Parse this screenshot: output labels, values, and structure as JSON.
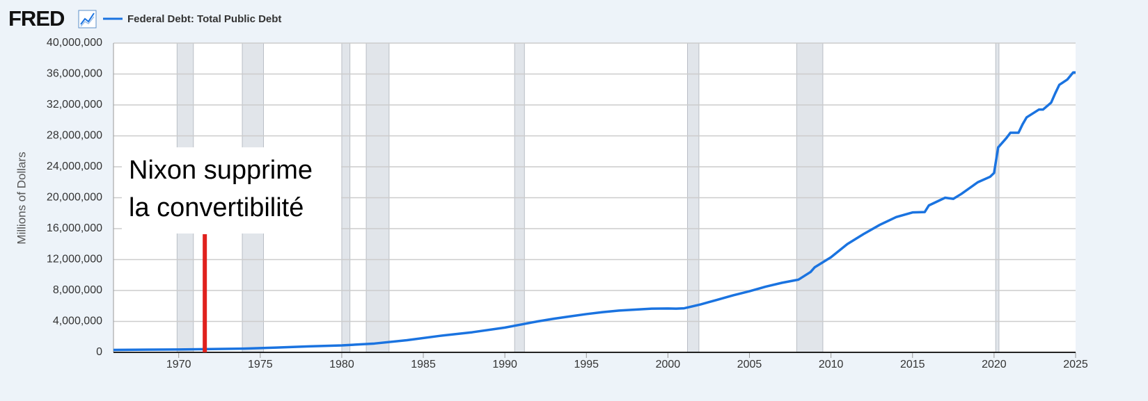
{
  "chart_data": {
    "type": "line",
    "logo": "FRED",
    "y_label": "Millions of Dollars",
    "xlim": [
      1966,
      2025
    ],
    "xticks": [
      1970,
      1975,
      1980,
      1985,
      1990,
      1995,
      2000,
      2005,
      2010,
      2015,
      2020,
      2025
    ],
    "ylim": [
      0,
      40000000
    ],
    "yticks": [
      0,
      {
        "value": 4000000,
        "label": "4,000,000"
      },
      {
        "value": 8000000,
        "label": "8,000,000"
      },
      {
        "value": 12000000,
        "label": "12,000,000"
      },
      {
        "value": 16000000,
        "label": "16,000,000"
      },
      {
        "value": 20000000,
        "label": "20,000,000"
      },
      {
        "value": 24000000,
        "label": "24,000,000"
      },
      {
        "value": 28000000,
        "label": "28,000,000"
      },
      {
        "value": 32000000,
        "label": "32,000,000"
      },
      {
        "value": 36000000,
        "label": "36,000,000"
      },
      {
        "value": 40000000,
        "label": "40,000,000"
      }
    ],
    "grid": true,
    "recessions": [
      [
        1969.9,
        1970.9
      ],
      [
        1973.9,
        1975.2
      ],
      [
        1980.0,
        1980.5
      ],
      [
        1981.5,
        1982.9
      ],
      [
        1990.6,
        1991.2
      ],
      [
        2001.2,
        2001.9
      ],
      [
        2007.9,
        2009.5
      ],
      [
        2020.1,
        2020.3
      ]
    ],
    "recession_color": "#e1e5ea",
    "annotation": {
      "lines": [
        "Nixon supprime",
        "la convertibilité"
      ],
      "x": 1971.6,
      "color": "#e0211d"
    },
    "x": [
      1966,
      1968,
      1970,
      1972,
      1974,
      1976,
      1978,
      1980,
      1982,
      1984,
      1986,
      1988,
      1990,
      1991,
      1992,
      1993,
      1994,
      1995,
      1996,
      1997,
      1998,
      1999,
      2000,
      2000.5,
      2001,
      2002,
      2003,
      2004,
      2005,
      2006,
      2007,
      2008,
      2008.75,
      2009,
      2010,
      2011,
      2012,
      2013,
      2014,
      2015,
      2015.75,
      2016,
      2017,
      2017.5,
      2018,
      2019,
      2019.75,
      2020,
      2020.25,
      2020.75,
      2021,
      2021.5,
      2021.75,
      2022,
      2022.75,
      2023,
      2023.5,
      2023.75,
      2024,
      2024.5,
      2024.85,
      2025
    ],
    "series": [
      {
        "name": "Federal Debt: Total Public Debt",
        "color": "#1a73e0",
        "values": [
          320000,
          350000,
          375000,
          430000,
          480000,
          620000,
          770000,
          900000,
          1140000,
          1570000,
          2130000,
          2600000,
          3200000,
          3600000,
          4000000,
          4350000,
          4650000,
          4950000,
          5200000,
          5400000,
          5530000,
          5650000,
          5670000,
          5650000,
          5700000,
          6200000,
          6780000,
          7380000,
          7900000,
          8500000,
          9000000,
          9400000,
          10400000,
          11000000,
          12300000,
          14000000,
          15300000,
          16500000,
          17500000,
          18100000,
          18150000,
          19000000,
          20000000,
          19850000,
          20500000,
          22000000,
          22700000,
          23200000,
          26500000,
          27700000,
          28400000,
          28400000,
          29500000,
          30400000,
          31400000,
          31400000,
          32300000,
          33500000,
          34600000,
          35300000,
          36200000,
          36200000
        ]
      }
    ]
  }
}
